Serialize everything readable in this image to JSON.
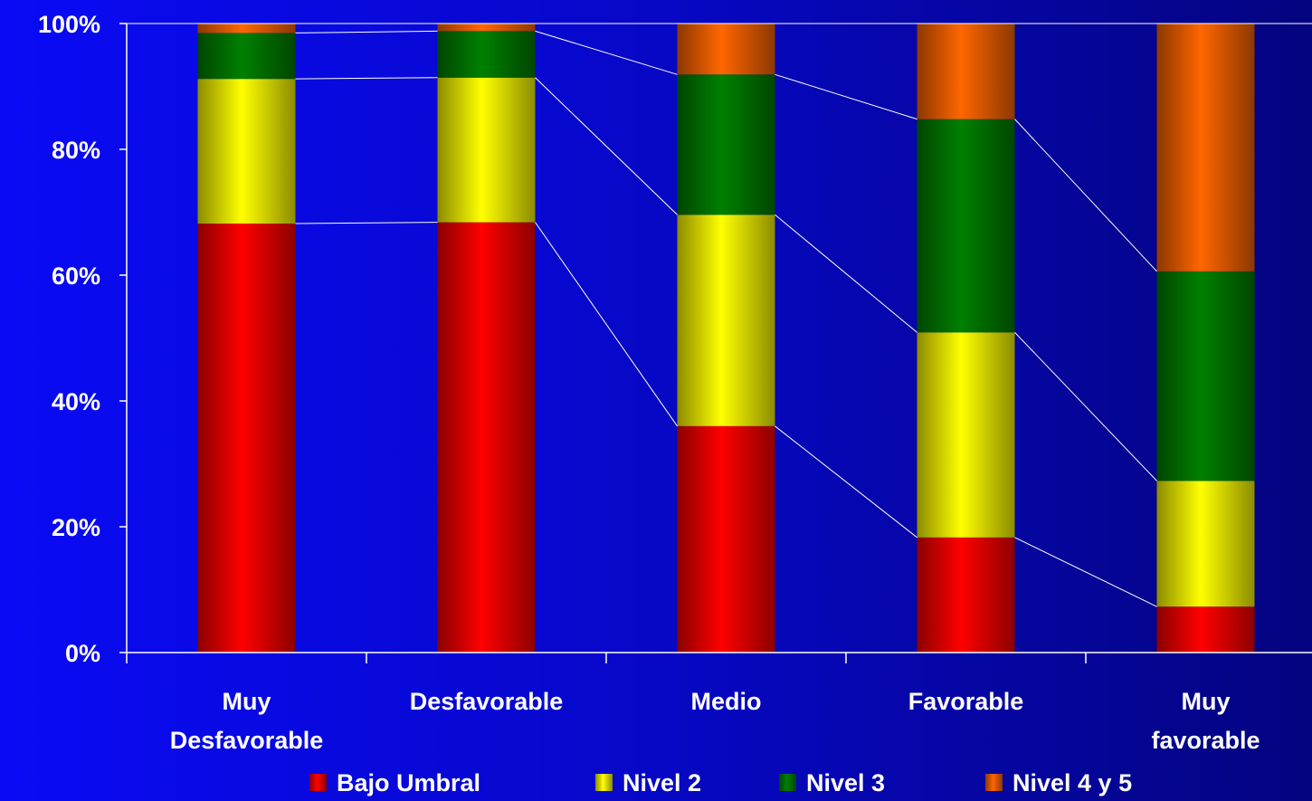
{
  "chart_data": {
    "type": "bar",
    "stacked": true,
    "percent": true,
    "categories": [
      [
        "Muy",
        "Desfavorable"
      ],
      [
        "Desfavorable"
      ],
      [
        "Medio"
      ],
      [
        "Favorable"
      ],
      [
        "Muy",
        "favorable"
      ]
    ],
    "series": [
      {
        "name": "Bajo Umbral",
        "color": "#ff0000",
        "values": [
          68.2,
          68.4,
          36.0,
          18.3,
          7.3
        ]
      },
      {
        "name": "Nivel 2",
        "color": "#ffff00",
        "values": [
          23.0,
          23.0,
          33.6,
          32.6,
          20.0
        ]
      },
      {
        "name": "Nivel 3",
        "color": "#008000",
        "values": [
          7.3,
          7.4,
          22.3,
          33.9,
          33.3
        ]
      },
      {
        "name": "Nivel 4 y 5",
        "color": "#ff6600",
        "values": [
          1.5,
          1.2,
          8.1,
          15.2,
          39.4
        ]
      }
    ],
    "yticks": [
      "0%",
      "20%",
      "40%",
      "60%",
      "80%",
      "100%"
    ],
    "ylim": [
      0,
      100
    ],
    "series_lines": true,
    "legend": "bottom"
  }
}
